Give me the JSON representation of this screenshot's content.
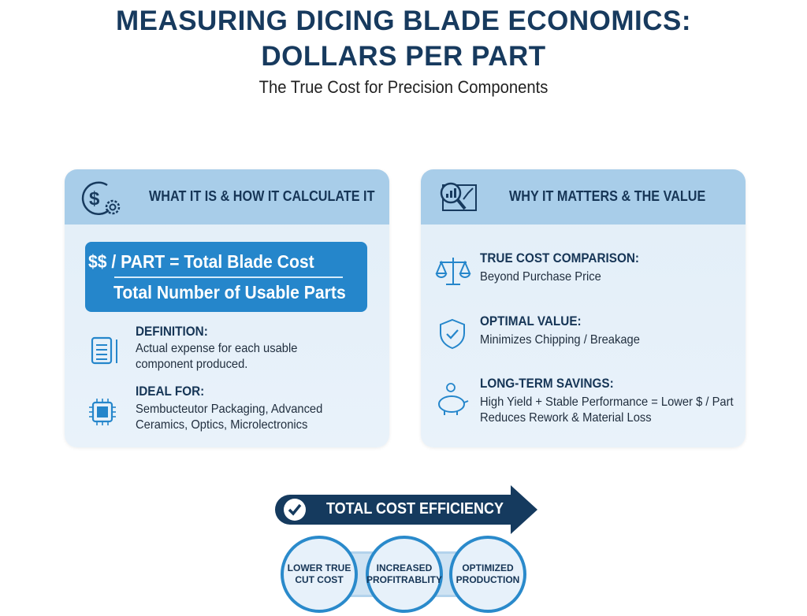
{
  "header": {
    "title_line1": "MEASURING DICING BLADE ECONOMICS:",
    "title_line2": "DOLLARS PER PART",
    "subtitle": "The True Cost for Precision Components"
  },
  "left_card": {
    "icon": "dollar-gear-icon",
    "title": "WHAT IT IS & HOW IT CALCULATE IT",
    "formula": {
      "numerator": "$$ / PART = Total Blade Cost",
      "denominator": "Total Number of Usable Parts"
    },
    "items": [
      {
        "icon": "document-icon",
        "heading": "DEFINITION:",
        "lines": [
          "Actual expense for each usable",
          "component produced."
        ]
      },
      {
        "icon": "chip-icon",
        "heading": "IDEAL FOR:",
        "lines": [
          "Sembucteutor Packaging, Advanced",
          "Ceramics, Optics, Microlectronics"
        ]
      }
    ]
  },
  "right_card": {
    "icon": "analytics-magnifier-icon",
    "title": "WHY IT MATTERS & THE VALUE",
    "items": [
      {
        "icon": "scale-icon",
        "heading": "TRUE COST COMPARISON:",
        "lines": [
          "Beyond Purchase Price"
        ]
      },
      {
        "icon": "shield-check-icon",
        "heading": "OPTIMAL VALUE:",
        "lines": [
          "Minimizes Chipping / Breakage"
        ]
      },
      {
        "icon": "piggy-bank-icon",
        "heading": "LONG-TERM SAVINGS:",
        "lines": [
          "High Yield + Stable Performance = Lower $ / Part",
          "Reduces Rework & Material Loss"
        ]
      }
    ]
  },
  "efficiency": {
    "label": "TOTAL COST EFFICIENCY",
    "icon": "check-circle-icon",
    "outcomes": [
      {
        "line1": "LOWER TRUE",
        "line2": "CUT COST"
      },
      {
        "line1": "INCREASED",
        "line2": "PROFITRABLITY"
      },
      {
        "line1": "OPTIMIZED",
        "line2": "PRODUCTION"
      }
    ]
  },
  "colors": {
    "navy": "#173a5e",
    "accent_blue": "#2586cb",
    "card_header": "#a8cde9",
    "card_body": "#e2eef8"
  }
}
